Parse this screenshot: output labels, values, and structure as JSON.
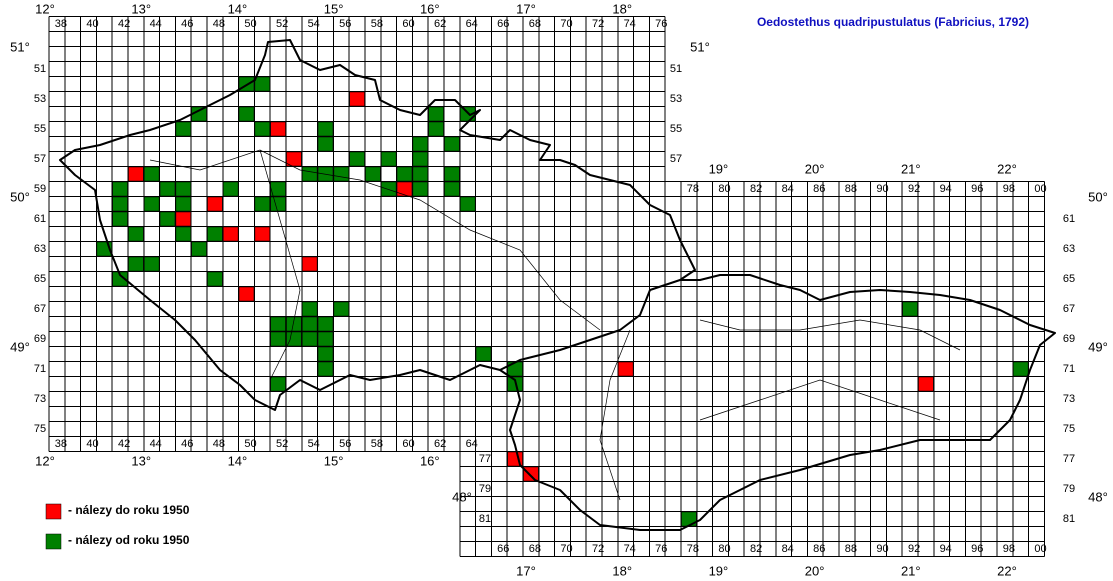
{
  "title": "Oedostethus quadripustulatus (Fabricius, 1792)",
  "grid_labels": {
    "cz_top": [
      38,
      40,
      42,
      44,
      46,
      48,
      50,
      52,
      54,
      56,
      58,
      60,
      62,
      64,
      66,
      68,
      70,
      72,
      74,
      76
    ],
    "cz_bottom": [
      38,
      40,
      42,
      44,
      46,
      48,
      50,
      52,
      54,
      56,
      58,
      60,
      62,
      64
    ],
    "sk_top": [
      78,
      80,
      82,
      84,
      86,
      88,
      90,
      92,
      94,
      96,
      98,
      {
        "value": 100,
        "label": "00"
      }
    ],
    "sk_bottom": [
      66,
      68,
      70,
      72,
      74,
      76,
      78,
      80,
      82,
      84,
      86,
      88,
      90,
      92,
      94,
      96,
      98,
      {
        "value": 100,
        "label": "00"
      }
    ],
    "cz_left": [
      51,
      53,
      55,
      57,
      59,
      61,
      63,
      65,
      67,
      69,
      71,
      73,
      75
    ],
    "cz_right": [
      51,
      53,
      55,
      57
    ],
    "sk_left": [
      77,
      79,
      81
    ],
    "sk_right": [
      61,
      63,
      65,
      67,
      69,
      71,
      73,
      75,
      77,
      79,
      81
    ]
  },
  "longitude": {
    "top": [
      {
        "value": 12,
        "label": "12°"
      },
      {
        "value": 13,
        "label": "13°"
      },
      {
        "value": 14,
        "label": "14°"
      },
      {
        "value": 15,
        "label": "15°"
      },
      {
        "value": 16,
        "label": "16°"
      },
      {
        "value": 17,
        "label": "17°"
      },
      {
        "value": 18,
        "label": "18°"
      }
    ],
    "cz_bottom": [
      {
        "value": 12,
        "label": "12°"
      },
      {
        "value": 13,
        "label": "13°"
      },
      {
        "value": 14,
        "label": "14°"
      },
      {
        "value": 15,
        "label": "15°"
      },
      {
        "value": 16,
        "label": "16°"
      }
    ],
    "sk_top": [
      {
        "value": 19,
        "label": "19°"
      },
      {
        "value": 20,
        "label": "20°"
      },
      {
        "value": 21,
        "label": "21°"
      },
      {
        "value": 22,
        "label": "22°"
      }
    ],
    "sk_bottom": [
      {
        "value": 17,
        "label": "17°"
      },
      {
        "value": 18,
        "label": "18°"
      },
      {
        "value": 19,
        "label": "19°"
      },
      {
        "value": 20,
        "label": "20°"
      },
      {
        "value": 21,
        "label": "21°"
      },
      {
        "value": 22,
        "label": "22°"
      }
    ]
  },
  "latitude": {
    "left": [
      {
        "value": 51,
        "label": "51°"
      },
      {
        "value": 50,
        "label": "50°"
      },
      {
        "value": 49,
        "label": "49°"
      }
    ],
    "right_cz": [
      {
        "value": 51,
        "label": "51°"
      }
    ],
    "right": [
      {
        "value": 50,
        "label": "50°"
      },
      {
        "value": 49,
        "label": "49°"
      },
      {
        "value": 48,
        "label": "48°"
      }
    ],
    "sk_left": [
      {
        "value": 48,
        "label": "48°"
      }
    ]
  },
  "legend": [
    {
      "label": "- nálezy do roku 1950",
      "color": "#ff0000",
      "squares": [
        [
          57,
          53
        ],
        [
          52,
          55
        ],
        [
          53,
          57
        ],
        [
          43,
          58
        ],
        [
          60,
          59
        ],
        [
          48,
          60
        ],
        [
          46,
          61
        ],
        [
          49,
          62
        ],
        [
          51,
          62
        ],
        [
          54,
          64
        ],
        [
          50,
          66
        ],
        [
          74,
          71
        ],
        [
          93,
          72
        ],
        [
          67,
          77
        ],
        [
          68,
          78
        ]
      ]
    },
    {
      "label": "- nálezy od roku 1950",
      "color": "#008000",
      "squares": [
        [
          50,
          52
        ],
        [
          51,
          52
        ],
        [
          47,
          54
        ],
        [
          50,
          54
        ],
        [
          62,
          54
        ],
        [
          64,
          54
        ],
        [
          46,
          55
        ],
        [
          51,
          55
        ],
        [
          55,
          55
        ],
        [
          62,
          55
        ],
        [
          55,
          56
        ],
        [
          61,
          56
        ],
        [
          63,
          56
        ],
        [
          57,
          57
        ],
        [
          59,
          57
        ],
        [
          61,
          57
        ],
        [
          44,
          58
        ],
        [
          54,
          58
        ],
        [
          55,
          58
        ],
        [
          56,
          58
        ],
        [
          58,
          58
        ],
        [
          60,
          58
        ],
        [
          61,
          58
        ],
        [
          63,
          58
        ],
        [
          42,
          59
        ],
        [
          45,
          59
        ],
        [
          46,
          59
        ],
        [
          49,
          59
        ],
        [
          52,
          59
        ],
        [
          59,
          59
        ],
        [
          61,
          59
        ],
        [
          63,
          59
        ],
        [
          42,
          60
        ],
        [
          44,
          60
        ],
        [
          46,
          60
        ],
        [
          51,
          60
        ],
        [
          52,
          60
        ],
        [
          64,
          60
        ],
        [
          42,
          61
        ],
        [
          45,
          61
        ],
        [
          43,
          62
        ],
        [
          46,
          62
        ],
        [
          48,
          62
        ],
        [
          41,
          63
        ],
        [
          47,
          63
        ],
        [
          43,
          64
        ],
        [
          44,
          64
        ],
        [
          42,
          65
        ],
        [
          48,
          65
        ],
        [
          54,
          67
        ],
        [
          56,
          67
        ],
        [
          52,
          68
        ],
        [
          53,
          68
        ],
        [
          54,
          68
        ],
        [
          55,
          68
        ],
        [
          52,
          69
        ],
        [
          53,
          69
        ],
        [
          54,
          69
        ],
        [
          55,
          69
        ],
        [
          55,
          70
        ],
        [
          65,
          70
        ],
        [
          55,
          71
        ],
        [
          67,
          71
        ],
        [
          52,
          72
        ],
        [
          67,
          72
        ],
        [
          92,
          67
        ],
        [
          99,
          71
        ],
        [
          78,
          81
        ]
      ]
    }
  ]
}
